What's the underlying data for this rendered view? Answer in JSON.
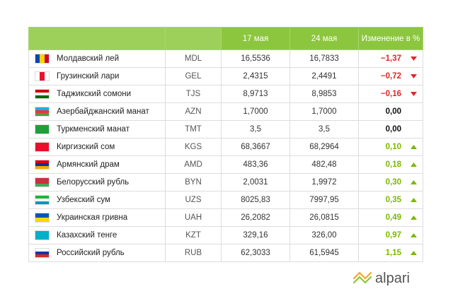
{
  "table": {
    "header": [
      "17 мая",
      "24 мая",
      "Изменение в %"
    ],
    "rows": [
      [
        "Молдавский лей",
        "MDL",
        "16,5536",
        "16,7833",
        "−1,37"
      ],
      [
        "Грузинский лари",
        "GEL",
        "2,4315",
        "2,4491",
        "−0,72"
      ],
      [
        "Таджикский сомони",
        "TJS",
        "8,9713",
        "8,9853",
        "−0,16"
      ],
      [
        "Азербайджанский манат",
        "AZN",
        "1,7000",
        "1,7000",
        "0,00"
      ],
      [
        "Туркменский манат",
        "TMT",
        "3,5",
        "3,5",
        "0,00"
      ],
      [
        "Киргизский сом",
        "KGS",
        "68,3667",
        "68,2964",
        "0,10"
      ],
      [
        "Армянский драм",
        "AMD",
        "483,36",
        "482,48",
        "0,18"
      ],
      [
        "Белорусский рубль",
        "BYN",
        "2,0031",
        "1,9972",
        "0,30"
      ],
      [
        "Узбекский сум",
        "UZS",
        "8025,83",
        "7997,95",
        "0,35"
      ],
      [
        "Украинская гривна",
        "UAH",
        "26,2082",
        "26,0815",
        "0,49"
      ],
      [
        "Казахский тенге",
        "KZT",
        "329,16",
        "326,00",
        "0,97"
      ],
      [
        "Российский рубль",
        "RUB",
        "62,3033",
        "61,5945",
        "1,15"
      ]
    ]
  },
  "logo": {
    "text": "alpari"
  }
}
